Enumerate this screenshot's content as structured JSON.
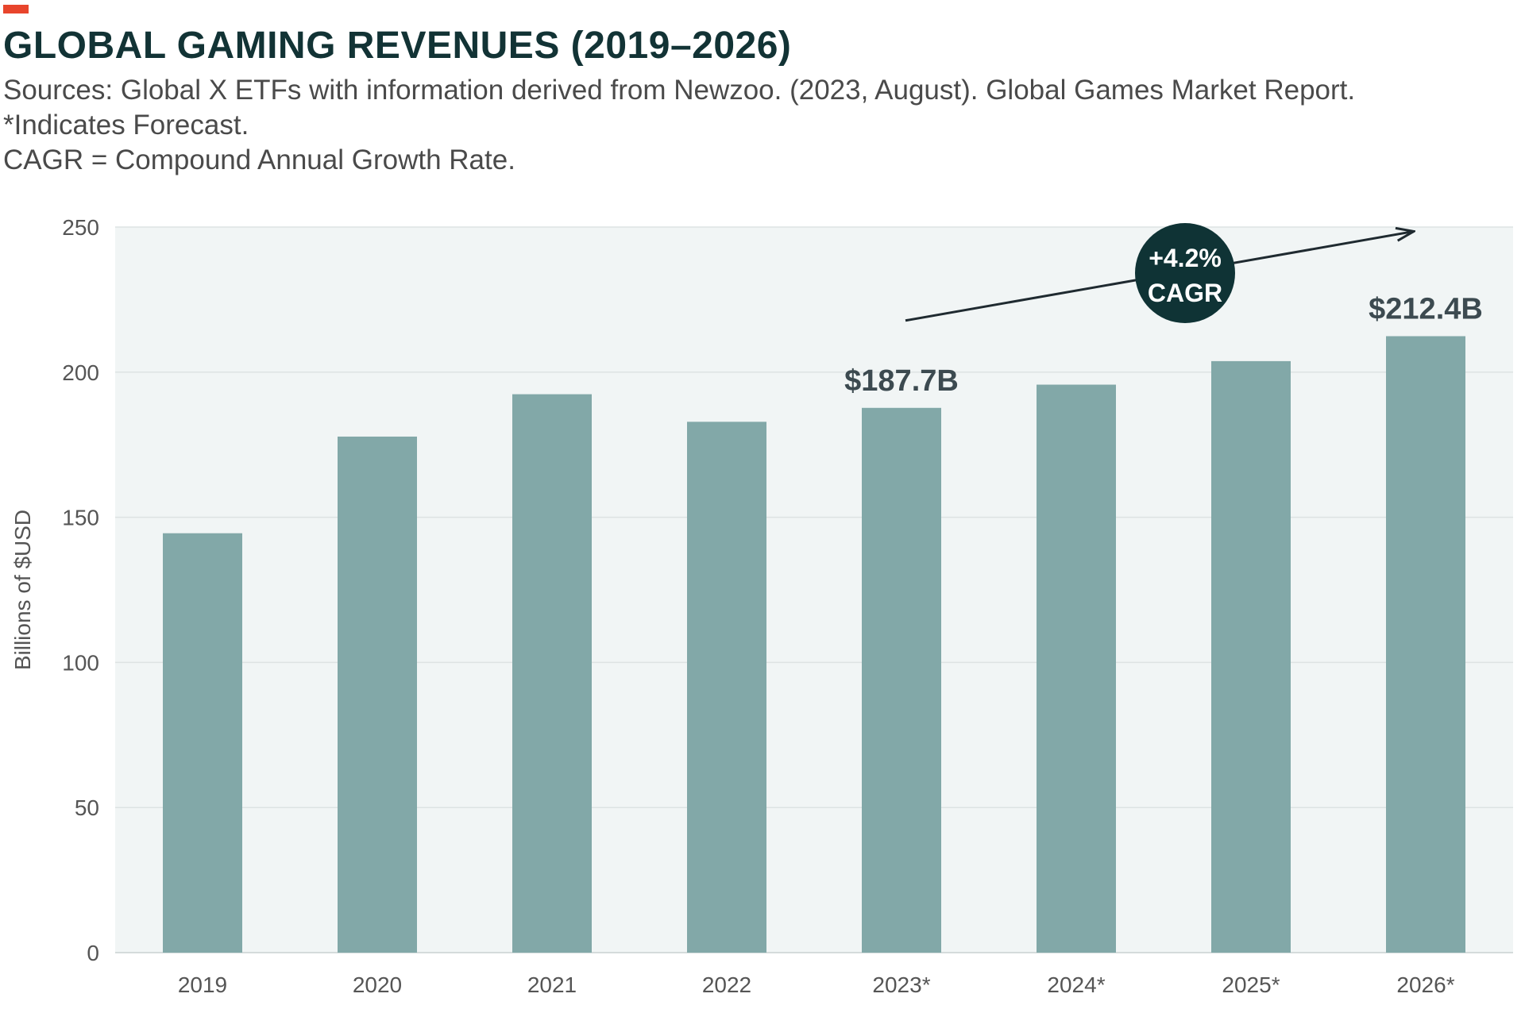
{
  "header": {
    "title": "GLOBAL GAMING REVENUES (2019–2026)",
    "subtitle_lines": [
      "Sources: Global X ETFs with information derived from Newzoo. (2023, August). Global Games Market Report.",
      "*Indicates Forecast.",
      "CAGR = Compound Annual Growth Rate."
    ]
  },
  "colors": {
    "accent": "#e8452c",
    "bar": "#82a8a8",
    "plot_bg": "#f1f5f5",
    "badge": "#0f3335",
    "title": "#123335"
  },
  "chart_data": {
    "type": "bar",
    "title": "GLOBAL GAMING REVENUES (2019–2026)",
    "xlabel": "",
    "ylabel": "Billions of $USD",
    "categories": [
      "2019",
      "2020",
      "2021",
      "2022",
      "2023*",
      "2024*",
      "2025*",
      "2026*"
    ],
    "values": [
      144.5,
      177.8,
      192.4,
      182.9,
      187.7,
      195.7,
      203.8,
      212.4
    ],
    "ylim": [
      0,
      250
    ],
    "yticks": [
      0,
      50,
      100,
      150,
      200,
      250
    ],
    "grid": true,
    "data_labels": [
      {
        "category": "2023*",
        "text": "$187.7B"
      },
      {
        "category": "2026*",
        "text": "$212.4B"
      }
    ],
    "annotation": {
      "lines": [
        "+4.2%",
        "CAGR"
      ],
      "from_category": "2023*",
      "to_category": "2026*"
    }
  }
}
